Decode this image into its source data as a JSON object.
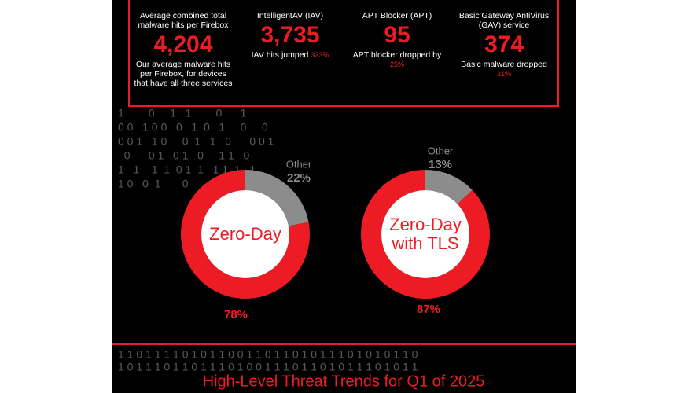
{
  "stats": [
    {
      "heading": "Average combined total malware hits per Firebox",
      "value": "4,204",
      "note": "Our average malware hits per Firebox, for devices that have all three services"
    },
    {
      "heading": "IntelligentAV (IAV)",
      "value": "3,735",
      "note": "IAV hits jumped",
      "highlight": "323%"
    },
    {
      "heading": "APT Blocker (APT)",
      "value": "95",
      "note": "APT blocker dropped by",
      "highlight": "25%"
    },
    {
      "heading": "Basic Gateway AntiVirus (GAV) service",
      "value": "374",
      "note": "Basic malware dropped",
      "highlight": "31%"
    }
  ],
  "background_digits": [
    "1        0     1   1        0      1",
    "0 0   1 0 0   0   1  0   1     0     0",
    "0 0 1   1 0     0  1   1   0      0 0 1",
    "  0      0 1   0 1   0     1 1   0",
    "1   1    1  1  0 1  1   1 1  1   1",
    "1 0   0  1       0       1   0"
  ],
  "footer_digits": [
    "1 1 0 1 1 1 1 0 1 0 1 1 0 0 1 1 0 1 1 0 1 0 1 1 1 0 1 0 1 0 1 1 0",
    "1 0 1 1 1 0 1 1 0 1 1 1 0 1 0 0 1 1 1 0 1 1 0 1 0 1 1 1 0 1 0 1 1"
  ],
  "chart_data": [
    {
      "type": "pie",
      "categories": [
        "Zero-Day",
        "Other"
      ],
      "values": [
        78,
        22
      ],
      "value_labels": [
        "78%",
        "22%"
      ],
      "colors": [
        "#ed1c24",
        "#8c8c8c"
      ]
    },
    {
      "type": "pie",
      "categories": [
        "Zero-Day with TLS",
        "Other"
      ],
      "values": [
        87,
        13
      ],
      "value_labels": [
        "87%",
        "13%"
      ],
      "colors": [
        "#ed1c24",
        "#8c8c8c"
      ]
    }
  ],
  "footer_title": "High-Level Threat Trends for Q1 of 2025"
}
